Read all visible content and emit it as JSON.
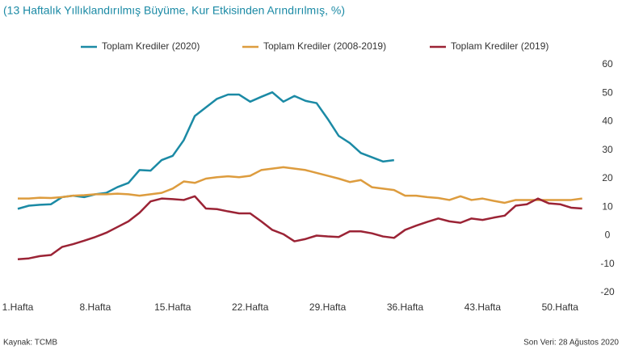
{
  "chart_data": {
    "type": "line",
    "title": "(13 Haftalık Yıllıklandırılmış Büyüme, Kur Etkisinden Arındırılmış, %)",
    "source": "Kaynak: TCMB",
    "note": "Son Veri: 28 Ağustos 2020",
    "categories": [
      "1.Hafta",
      null,
      null,
      null,
      null,
      null,
      null,
      "8.Hafta",
      null,
      null,
      null,
      null,
      null,
      null,
      "15.Hafta",
      null,
      null,
      null,
      null,
      null,
      null,
      "22.Hafta",
      null,
      null,
      null,
      null,
      null,
      null,
      "29.Hafta",
      null,
      null,
      null,
      null,
      null,
      null,
      "36.Hafta",
      null,
      null,
      null,
      null,
      null,
      null,
      "43.Hafta",
      null,
      null,
      null,
      null,
      null,
      null,
      "50.Hafta",
      null,
      null
    ],
    "series": [
      {
        "name": "Toplam Krediler (2020)",
        "color": "#1b8aa5",
        "values": [
          9.4,
          10.5,
          10.8,
          11,
          13.5,
          14,
          13.5,
          14.5,
          15,
          17,
          18.5,
          23,
          22.8,
          26.5,
          28,
          33.5,
          42,
          45,
          48,
          49.5,
          49.5,
          47,
          48.7,
          50.3,
          47,
          49,
          47.3,
          46.5,
          41,
          35,
          32.5,
          29,
          27.5,
          26,
          26.5,
          null,
          null,
          null,
          null,
          null,
          null,
          null,
          null,
          null,
          null,
          null,
          null,
          null,
          null,
          null,
          null,
          null
        ]
      },
      {
        "name": "Toplam Krediler (2008-2019)",
        "color": "#dd9c3e",
        "values": [
          13,
          13,
          13.3,
          13.2,
          13.5,
          14,
          14.2,
          14.5,
          14.5,
          14.7,
          14.5,
          14,
          14.5,
          15,
          16.5,
          19,
          18.5,
          20,
          20.5,
          20.8,
          20.5,
          21,
          23,
          23.5,
          24,
          23.5,
          23,
          22,
          21,
          20,
          18.8,
          19.5,
          17,
          16.5,
          16,
          14,
          14,
          13.5,
          13.2,
          12.5,
          13.8,
          12.5,
          13,
          12.2,
          11.5,
          12.5,
          12.5,
          12.5,
          12.5,
          12.5,
          12.5,
          13
        ]
      },
      {
        "name": "Toplam Krediler (2019)",
        "color": "#9b2335",
        "values": [
          -8.3,
          -8,
          -7.2,
          -6.8,
          -4,
          -3,
          -1.8,
          -0.5,
          1,
          3,
          5,
          8,
          12,
          13,
          12.8,
          12.5,
          13.8,
          9.5,
          9.3,
          8.5,
          7.8,
          7.8,
          5,
          2,
          0.5,
          -2,
          -1.2,
          0,
          -0.3,
          -0.5,
          1.5,
          1.5,
          0.8,
          -0.3,
          -0.8,
          2,
          3.5,
          4.8,
          6,
          5,
          4.5,
          6,
          5.5,
          6.3,
          7,
          10.5,
          11,
          13,
          11.3,
          11,
          9.8,
          9.5
        ]
      }
    ],
    "ylim": [
      -20,
      60
    ],
    "yticks": [
      -20,
      -10,
      0,
      10,
      20,
      30,
      40,
      50,
      60
    ],
    "grid": false
  }
}
